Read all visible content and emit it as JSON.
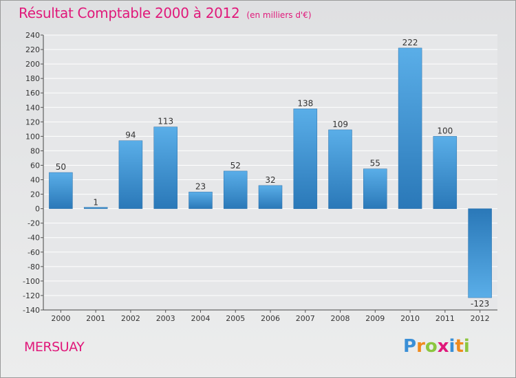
{
  "header": {
    "title": "Résultat Comptable 2000 à 2012",
    "subtitle": "(en milliers d'€)"
  },
  "footer": {
    "commune": "MERSUAY",
    "logo_text": "Proxiti",
    "logo_letters": [
      {
        "ch": "P",
        "color": "#3a8fd6"
      },
      {
        "ch": "r",
        "color": "#f08a1c"
      },
      {
        "ch": "o",
        "color": "#8cc63f"
      },
      {
        "ch": "x",
        "color": "#e0187a"
      },
      {
        "ch": "i",
        "color": "#3a8fd6"
      },
      {
        "ch": "t",
        "color": "#f08a1c"
      },
      {
        "ch": "i",
        "color": "#8cc63f"
      }
    ]
  },
  "colors": {
    "bar_top": "#5aaee8",
    "bar_bottom": "#2a78b8",
    "grid": "#ffffff",
    "title": "#e0187a"
  },
  "chart_data": {
    "type": "bar",
    "title": "Résultat Comptable 2000 à 2012",
    "subtitle": "(en milliers d'€)",
    "xlabel": "",
    "ylabel": "",
    "categories": [
      "2000",
      "2001",
      "2002",
      "2003",
      "2004",
      "2005",
      "2006",
      "2007",
      "2008",
      "2009",
      "2010",
      "2011",
      "2012"
    ],
    "values": [
      50,
      1,
      94,
      113,
      23,
      52,
      32,
      138,
      109,
      55,
      222,
      100,
      -123
    ],
    "data_labels": [
      "50",
      "1",
      "94",
      "113",
      "23",
      "52",
      "32",
      "138",
      "109",
      "55",
      "222",
      "100",
      "-123"
    ],
    "ylim": [
      -140,
      240
    ],
    "yticks": [
      -140,
      -120,
      -100,
      -80,
      -60,
      -40,
      -20,
      0,
      20,
      40,
      60,
      80,
      100,
      120,
      140,
      160,
      180,
      200,
      220,
      240
    ],
    "grid": true,
    "legend": "none"
  }
}
